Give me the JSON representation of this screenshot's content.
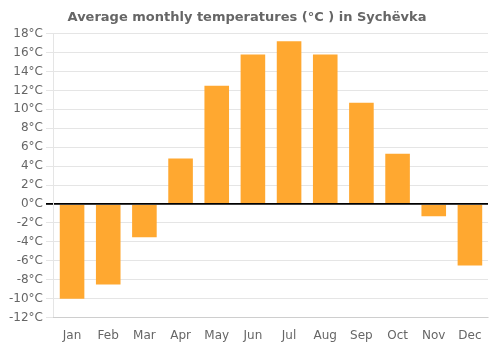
{
  "chart_data": {
    "type": "bar",
    "title": "Average monthly temperatures (°C ) in Sychëvka",
    "categories": [
      "Jan",
      "Feb",
      "Mar",
      "Apr",
      "May",
      "Jun",
      "Jul",
      "Aug",
      "Sep",
      "Oct",
      "Nov",
      "Dec"
    ],
    "values": [
      -10.0,
      -8.5,
      -3.5,
      4.8,
      12.5,
      15.8,
      17.2,
      15.8,
      10.7,
      5.3,
      -1.3,
      -6.5
    ],
    "color": "#FFA830",
    "ylim": [
      -12,
      18
    ],
    "yticks": [
      {
        "value": -12,
        "label": "-12°C"
      },
      {
        "value": -10,
        "label": "-10°C"
      },
      {
        "value": -8,
        "label": "-8°C"
      },
      {
        "value": -6,
        "label": "-6°C"
      },
      {
        "value": -4,
        "label": "-4°C"
      },
      {
        "value": -2,
        "label": "-2°C"
      },
      {
        "value": 0,
        "label": "0°C"
      },
      {
        "value": 2,
        "label": "2°C"
      },
      {
        "value": 4,
        "label": "4°C"
      },
      {
        "value": 6,
        "label": "6°C"
      },
      {
        "value": 8,
        "label": "8°C"
      },
      {
        "value": 10,
        "label": "10°C"
      },
      {
        "value": 12,
        "label": "12°C"
      },
      {
        "value": 14,
        "label": "14°C"
      },
      {
        "value": 16,
        "label": "16°C"
      },
      {
        "value": 18,
        "label": "18°C"
      }
    ],
    "grid": true
  }
}
